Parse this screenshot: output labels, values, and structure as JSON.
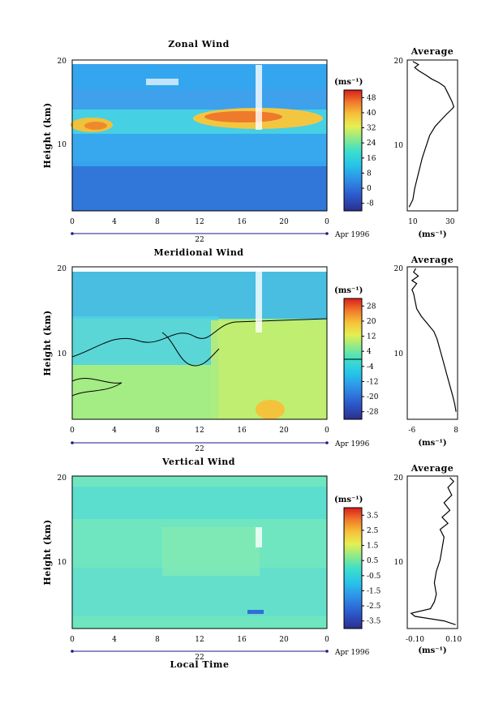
{
  "chart_data": [
    {
      "type": "heatmap",
      "title": "Zonal Wind",
      "ylabel": "Height (km)",
      "x_ticks": [
        "0",
        "4",
        "8",
        "12",
        "16",
        "20",
        "0"
      ],
      "y_ticks": [
        "10",
        "20"
      ],
      "date_day": "22",
      "date_month": "Apr 1996",
      "colorbar_unit": "(ms⁻¹)",
      "colorbar_ticks": [
        "48",
        "40",
        "32",
        "24",
        "16",
        "8",
        "0",
        "-8"
      ],
      "colorbar_range": [
        -12,
        52
      ],
      "profile": {
        "title": "Average",
        "xlabel": "(ms⁻¹)",
        "x_ticks": [
          "10",
          "30"
        ],
        "x_tick_values": [
          10,
          30
        ],
        "xlim": [
          7,
          34
        ],
        "y_ticks": [
          "10",
          "20"
        ],
        "ylim": [
          0,
          20
        ],
        "points": [
          [
            8,
            0.5
          ],
          [
            10,
            1.5
          ],
          [
            11,
            3
          ],
          [
            13,
            5
          ],
          [
            15,
            7
          ],
          [
            17,
            8.5
          ],
          [
            19,
            10
          ],
          [
            22,
            11.2
          ],
          [
            25,
            12
          ],
          [
            28,
            12.8
          ],
          [
            31,
            13.5
          ],
          [
            32,
            13.8
          ],
          [
            31,
            14.5
          ],
          [
            29,
            15.5
          ],
          [
            27,
            16.5
          ],
          [
            24,
            17
          ],
          [
            20,
            17.5
          ],
          [
            17,
            18
          ],
          [
            13,
            18.6
          ],
          [
            11,
            19
          ],
          [
            13,
            19.4
          ],
          [
            10,
            19.8
          ]
        ]
      }
    },
    {
      "type": "heatmap",
      "title": "Meridional Wind",
      "ylabel": "Height (km)",
      "x_ticks": [
        "0",
        "4",
        "8",
        "12",
        "16",
        "20",
        "0"
      ],
      "y_ticks": [
        "10",
        "20"
      ],
      "date_day": "22",
      "date_month": "Apr 1996",
      "colorbar_unit": "(ms⁻¹)",
      "colorbar_ticks": [
        "28",
        "20",
        "12",
        "4",
        "-4",
        "-12",
        "-20",
        "-28"
      ],
      "colorbar_range": [
        -32,
        32
      ],
      "profile": {
        "title": "Average",
        "xlabel": "(ms⁻¹)",
        "x_ticks": [
          "-6",
          "8"
        ],
        "x_tick_values": [
          -6,
          8
        ],
        "xlim": [
          -7.5,
          8.5
        ],
        "y_ticks": [
          "10",
          "20"
        ],
        "ylim": [
          0,
          20
        ],
        "points": [
          [
            8,
            1
          ],
          [
            7.6,
            2
          ],
          [
            7,
            3
          ],
          [
            6,
            4.5
          ],
          [
            5,
            6
          ],
          [
            4,
            7.5
          ],
          [
            3,
            9
          ],
          [
            2,
            10.5
          ],
          [
            1,
            11.5
          ],
          [
            -1,
            12.5
          ],
          [
            -3,
            13.5
          ],
          [
            -4.5,
            14.5
          ],
          [
            -5,
            15.5
          ],
          [
            -5.5,
            16.5
          ],
          [
            -6,
            17
          ],
          [
            -4.5,
            17.8
          ],
          [
            -6,
            18.2
          ],
          [
            -4,
            18.8
          ],
          [
            -5.5,
            19.3
          ],
          [
            -4.8,
            19.8
          ]
        ]
      }
    },
    {
      "type": "heatmap",
      "title": "Vertical Wind",
      "ylabel": "Height (km)",
      "xlabel": "Local Time",
      "x_ticks": [
        "0",
        "4",
        "8",
        "12",
        "16",
        "20",
        "0"
      ],
      "y_ticks": [
        "10",
        "20"
      ],
      "date_day": "22",
      "date_month": "Apr 1996",
      "colorbar_unit": "(ms⁻¹)",
      "colorbar_ticks": [
        "3.5",
        "2.5",
        "1.5",
        "0.5",
        "-0.5",
        "-1.5",
        "-2.5",
        "-3.5"
      ],
      "colorbar_range": [
        -4,
        4
      ],
      "profile": {
        "title": "Average",
        "xlabel": "(ms⁻¹)",
        "x_ticks": [
          "-0.10",
          "0.10"
        ],
        "x_tick_values": [
          -0.1,
          0.1
        ],
        "xlim": [
          -0.14,
          0.12
        ],
        "y_ticks": [
          "10",
          "20"
        ],
        "ylim": [
          0,
          20
        ],
        "points": [
          [
            0.11,
            0.5
          ],
          [
            0.05,
            1
          ],
          [
            -0.1,
            1.6
          ],
          [
            -0.12,
            2
          ],
          [
            -0.02,
            2.6
          ],
          [
            0.0,
            3.5
          ],
          [
            0.01,
            4.5
          ],
          [
            0.0,
            6
          ],
          [
            0.01,
            7.5
          ],
          [
            0.03,
            9
          ],
          [
            0.04,
            10.5
          ],
          [
            0.05,
            12
          ],
          [
            0.03,
            13
          ],
          [
            0.07,
            13.8
          ],
          [
            0.04,
            14.6
          ],
          [
            0.08,
            15.5
          ],
          [
            0.05,
            16.5
          ],
          [
            0.09,
            17.5
          ],
          [
            0.07,
            18.5
          ],
          [
            0.1,
            19.3
          ],
          [
            0.08,
            19.8
          ]
        ]
      }
    }
  ]
}
